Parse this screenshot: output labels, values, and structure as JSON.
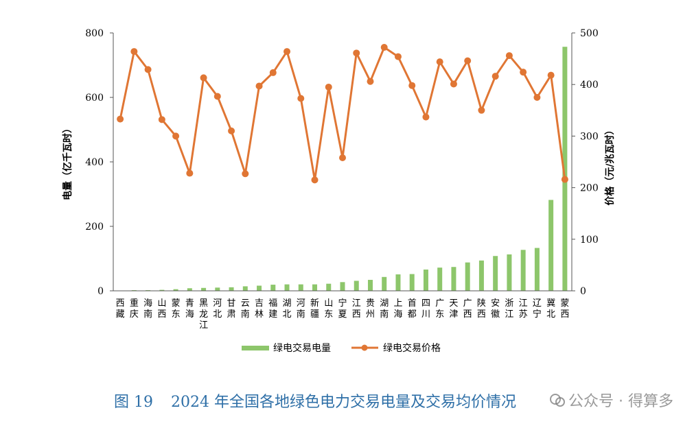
{
  "chart_data": {
    "type": "bar+line",
    "categories": [
      "西藏",
      "重庆",
      "海南",
      "山西",
      "蒙东",
      "青海",
      "黑龙江",
      "河北",
      "甘肃",
      "云南",
      "吉林",
      "福建",
      "湖北",
      "河南",
      "新疆",
      "山东",
      "宁夏",
      "江西",
      "贵州",
      "湖南",
      "上海",
      "首都",
      "四川",
      "广东",
      "天津",
      "广西",
      "陕西",
      "安徽",
      "浙江",
      "江苏",
      "辽宁",
      "冀北",
      "蒙西"
    ],
    "series": [
      {
        "name": "绿电交易电量",
        "type": "bar",
        "axis": "left",
        "color": "#8dc66b",
        "values": [
          1,
          2,
          2,
          3,
          5,
          8,
          9,
          10,
          11,
          14,
          16,
          19,
          20,
          20,
          20,
          22,
          27,
          31,
          34,
          43,
          51,
          52,
          66,
          72,
          74,
          88,
          94,
          108,
          113,
          127,
          133,
          282,
          757
        ]
      },
      {
        "name": "绿电交易价格",
        "type": "line",
        "axis": "right",
        "color": "#e07634",
        "values": [
          333,
          464,
          429,
          332,
          300,
          228,
          413,
          377,
          310,
          227,
          397,
          423,
          464,
          373,
          215,
          395,
          258,
          461,
          406,
          472,
          454,
          398,
          337,
          444,
          401,
          446,
          350,
          416,
          456,
          424,
          375,
          418,
          216
        ]
      }
    ],
    "ylabel_left": "电量（亿千瓦时）",
    "ylabel_right": "价格（元/兆瓦时）",
    "ylim_left": [
      0,
      800
    ],
    "ylim_right": [
      0,
      500
    ],
    "yticks_left": [
      "0",
      "200",
      "400",
      "600",
      "800"
    ],
    "yticks_right": [
      "0",
      "100",
      "200",
      "300",
      "400",
      "500"
    ],
    "grid": false,
    "legend_position": "bottom"
  },
  "caption": {
    "number": "图 19",
    "title": "2024 年全国各地绿色电力交易电量及交易均价情况"
  },
  "watermark": "公众号 · 得算多"
}
